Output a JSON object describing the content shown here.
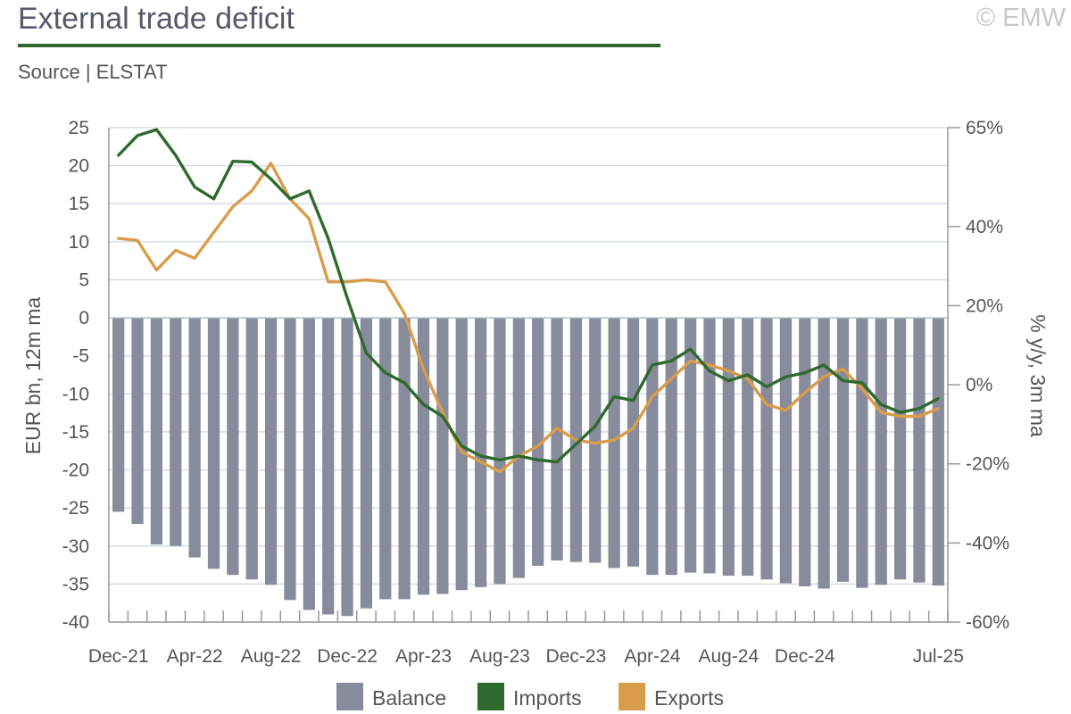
{
  "header": {
    "title": "External trade deficit",
    "source": "Source | ELSTAT",
    "copyright": "© EMW"
  },
  "colors": {
    "balance": "#878b9c",
    "imports": "#2e6a2e",
    "exports": "#d99c4a",
    "grid": "#d6dde6",
    "axis": "#999999"
  },
  "chart_data": {
    "type": "bar",
    "title": "External trade deficit",
    "ylabel": "EUR bn, 12m ma",
    "y2label": "% y/y, 3m ma",
    "ylim": [
      -40,
      25
    ],
    "yticks": [
      25,
      20,
      15,
      10,
      5,
      0,
      -5,
      -10,
      -15,
      -20,
      -25,
      -30,
      -35,
      -40
    ],
    "y2lim": [
      -60,
      65
    ],
    "y2ticks": [
      {
        "value": 65,
        "label": "65%"
      },
      {
        "value": 40,
        "label": "40%"
      },
      {
        "value": 20,
        "label": "20%"
      },
      {
        "value": 0,
        "label": "0%"
      },
      {
        "value": -20,
        "label": "-20%"
      },
      {
        "value": -40,
        "label": "-40%"
      },
      {
        "value": -60,
        "label": "-60%"
      }
    ],
    "xticks": [
      {
        "index": 0,
        "label": "Dec-21"
      },
      {
        "index": 4,
        "label": "Apr-22"
      },
      {
        "index": 8,
        "label": "Aug-22"
      },
      {
        "index": 12,
        "label": "Dec-22"
      },
      {
        "index": 16,
        "label": "Apr-23"
      },
      {
        "index": 20,
        "label": "Aug-23"
      },
      {
        "index": 24,
        "label": "Dec-23"
      },
      {
        "index": 28,
        "label": "Apr-24"
      },
      {
        "index": 32,
        "label": "Aug-24"
      },
      {
        "index": 36,
        "label": "Dec-24"
      },
      {
        "index": 43,
        "label": "Jul-25"
      }
    ],
    "legend": "bottom",
    "grid": true,
    "series": [
      {
        "name": "Balance",
        "type": "bar",
        "axis": "left",
        "values": [
          -25.5,
          -27.1,
          -29.8,
          -30.0,
          -31.5,
          -33.0,
          -33.8,
          -34.4,
          -35.1,
          -37.1,
          -38.4,
          -39.0,
          -39.2,
          -38.2,
          -37.0,
          -37.0,
          -36.4,
          -36.3,
          -35.8,
          -35.4,
          -35.0,
          -34.2,
          -32.6,
          -31.9,
          -32.1,
          -32.2,
          -32.9,
          -32.7,
          -33.8,
          -33.8,
          -33.5,
          -33.6,
          -33.9,
          -33.9,
          -34.4,
          -34.9,
          -35.3,
          -35.6,
          -34.7,
          -35.5,
          -35.1,
          -34.4,
          -34.8,
          -35.2
        ]
      },
      {
        "name": "Imports",
        "type": "line",
        "axis": "right",
        "values": [
          58.0,
          63.0,
          64.5,
          58.0,
          50.0,
          47.0,
          56.5,
          56.3,
          52.0,
          47.0,
          49.0,
          37.0,
          22.0,
          8.0,
          3.0,
          0.5,
          -5.0,
          -8.0,
          -15.5,
          -18.0,
          -19.0,
          -18.0,
          -19.0,
          -19.5,
          -15.0,
          -10.5,
          -3.0,
          -4.0,
          5.0,
          6.0,
          9.0,
          3.5,
          1.0,
          2.5,
          -0.5,
          2.0,
          3.0,
          5.0,
          1.0,
          0.5,
          -5.0,
          -7.0,
          -6.0,
          -3.5
        ]
      },
      {
        "name": "Exports",
        "type": "line",
        "axis": "right",
        "values": [
          37.0,
          36.5,
          29.0,
          34.0,
          32.0,
          38.5,
          45.0,
          49.0,
          56.0,
          47.0,
          42.0,
          26.0,
          26.0,
          26.5,
          26.0,
          18.0,
          4.0,
          -7.0,
          -17.0,
          -19.5,
          -22.0,
          -18.0,
          -15.5,
          -11.0,
          -14.0,
          -14.8,
          -14.0,
          -11.0,
          -3.0,
          1.5,
          6.0,
          5.0,
          3.5,
          1.5,
          -5.0,
          -6.5,
          -2.0,
          2.0,
          4.0,
          -1.0,
          -7.0,
          -8.0,
          -8.0,
          -6.0
        ]
      }
    ]
  }
}
